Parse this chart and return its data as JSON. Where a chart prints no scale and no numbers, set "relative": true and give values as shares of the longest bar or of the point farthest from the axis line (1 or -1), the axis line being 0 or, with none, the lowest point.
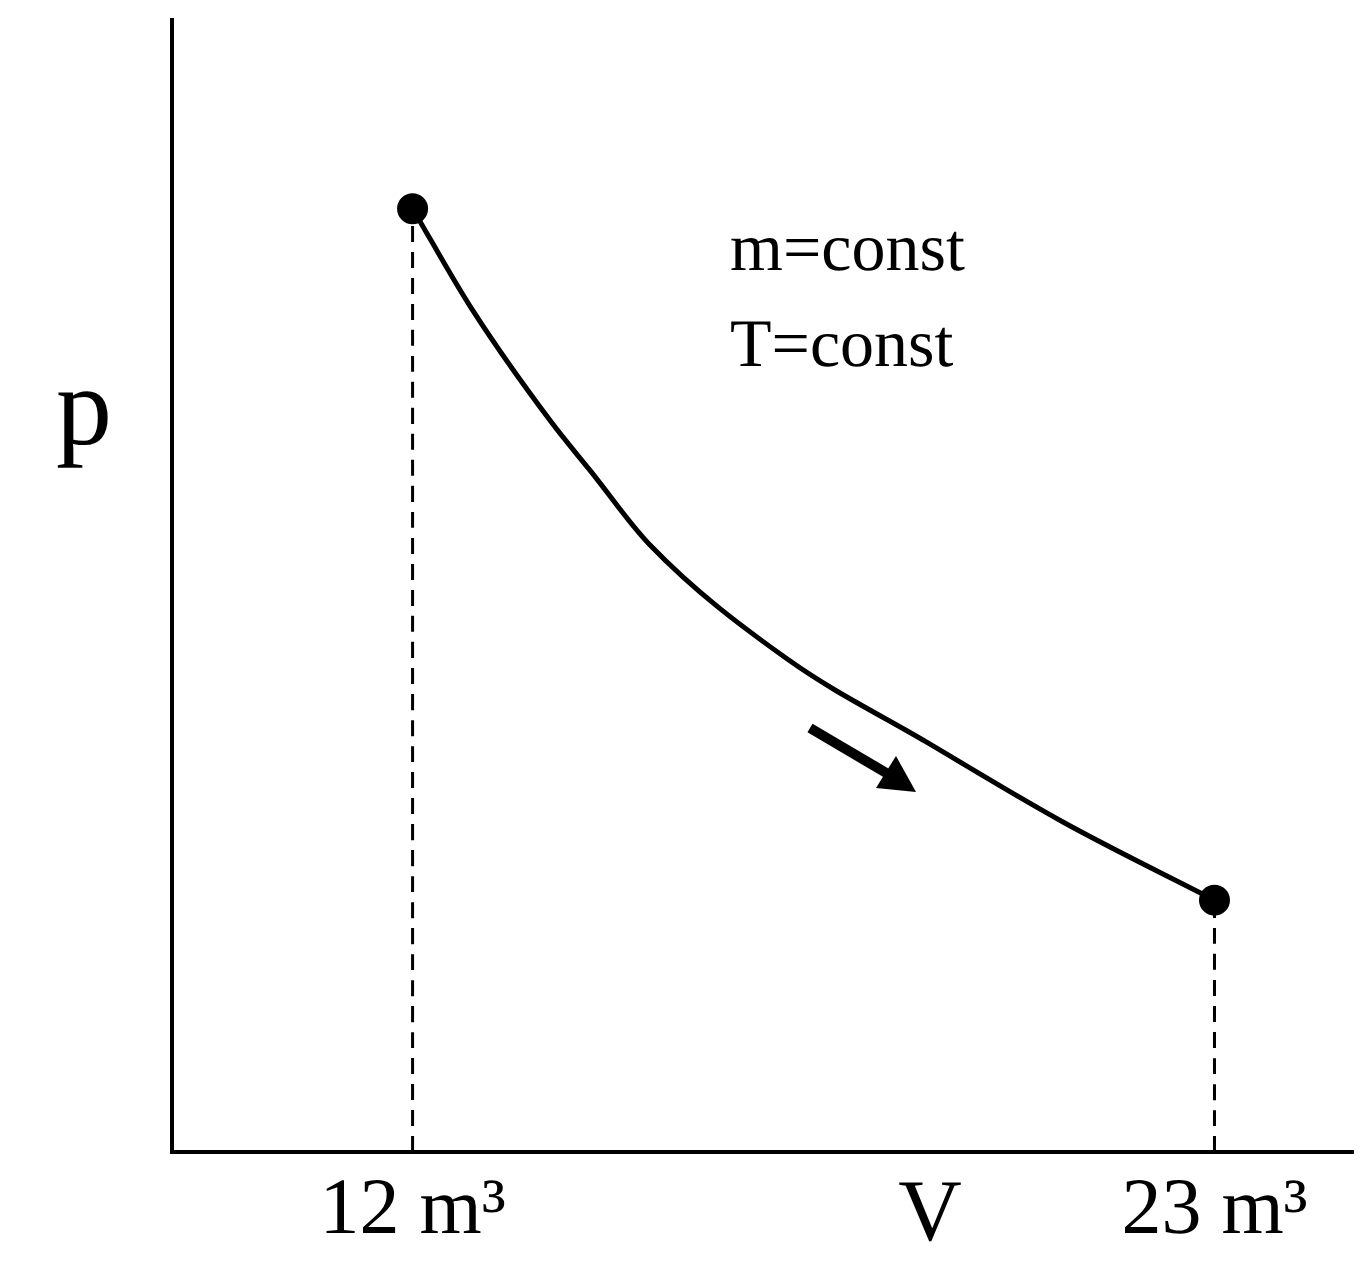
{
  "chart_data": {
    "type": "line",
    "xlabel": "V",
    "ylabel": "p",
    "relative": true,
    "xlim": [
      8.7,
      24.9
    ],
    "xticks": [
      {
        "value": 12,
        "label": "12 m³"
      },
      {
        "value": 23,
        "label": "23 m³"
      }
    ],
    "annotations": [
      "m=const",
      "T=const"
    ],
    "series": [
      {
        "color": "#000000",
        "marker": "none",
        "line_style": "solid",
        "x": [
          12,
          12.81,
          13.9,
          14.44,
          15.25,
          17.15,
          19.04,
          20.94,
          23
        ],
        "values": [
          1,
          0.894,
          0.774,
          0.722,
          0.644,
          0.522,
          0.435,
          0.349,
          0.267
        ]
      },
      {
        "type": "line",
        "color": "#000000",
        "marker": "none",
        "line_style": "dashed",
        "x": [
          12,
          12
        ],
        "values": [
          0,
          1
        ]
      },
      {
        "type": "line",
        "color": "#000000",
        "marker": "none",
        "line_style": "dashed",
        "x": [
          23,
          23
        ],
        "values": [
          0,
          0.267
        ]
      },
      {
        "type": "scatter",
        "color": "#000000",
        "marker": "circle",
        "x": [
          12,
          23
        ],
        "values": [
          1,
          0.267
        ]
      }
    ]
  }
}
